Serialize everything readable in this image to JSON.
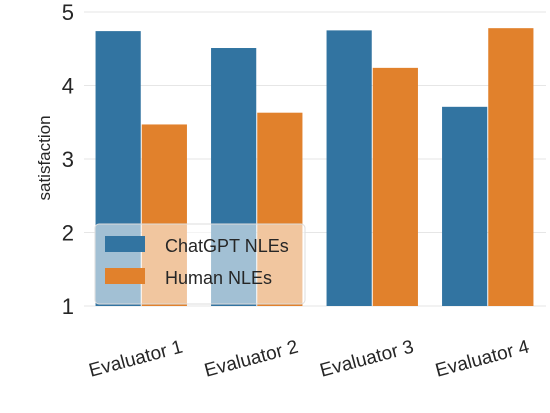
{
  "chart_data": {
    "type": "bar",
    "title": "",
    "xlabel": "",
    "ylabel": "satisfaction",
    "ylim": [
      1,
      5
    ],
    "yticks": [
      1,
      2,
      3,
      4,
      5
    ],
    "grid": true,
    "legend_position": "lower-left",
    "categories": [
      "Evaluator 1",
      "Evaluator 2",
      "Evaluator 3",
      "Evaluator 4"
    ],
    "series": [
      {
        "name": "ChatGPT NLEs",
        "color": "#3274a1",
        "values": [
          4.74,
          4.51,
          4.75,
          3.71
        ]
      },
      {
        "name": "Human NLEs",
        "color": "#e1812c",
        "values": [
          3.47,
          3.63,
          4.24,
          4.78
        ]
      }
    ]
  }
}
